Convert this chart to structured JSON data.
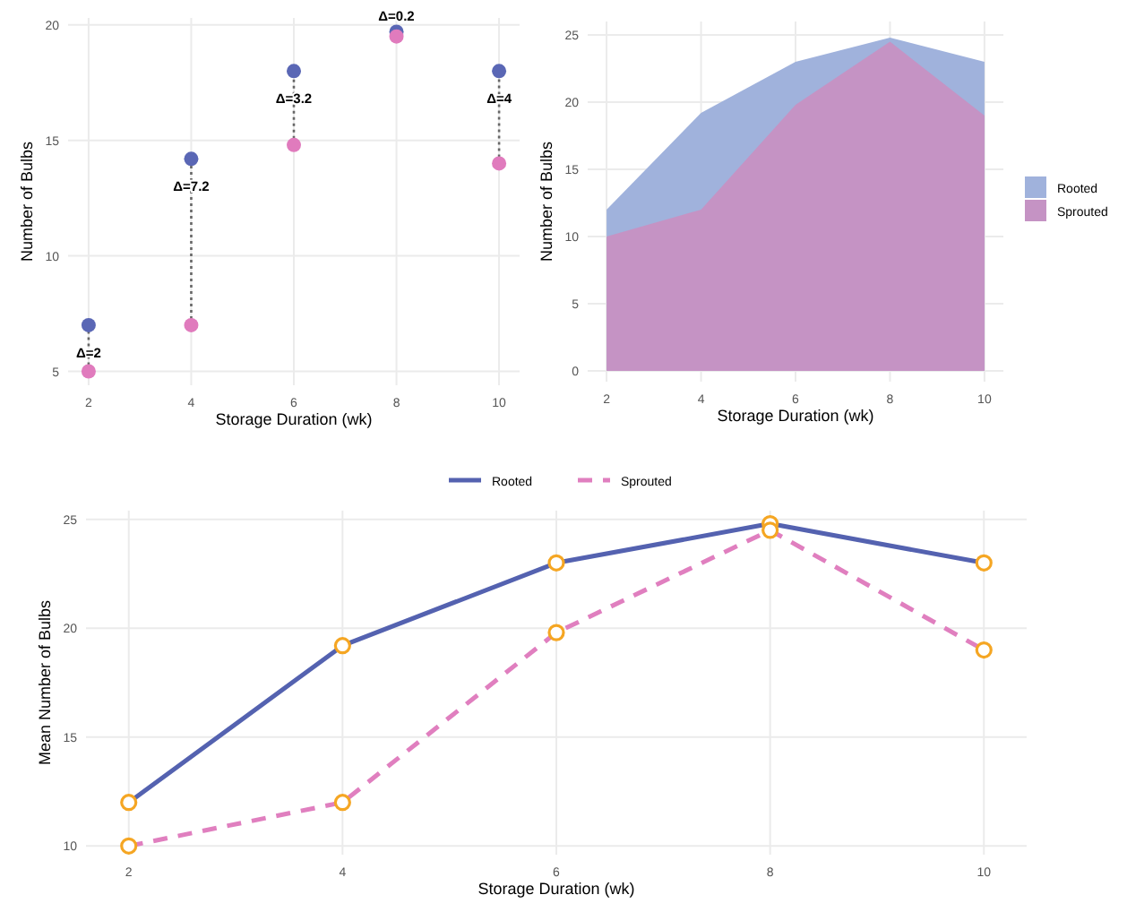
{
  "chart_data": [
    {
      "type": "scatter",
      "xlabel": "Storage Duration (wk)",
      "ylabel": "Number of Bulbs",
      "x": [
        2,
        4,
        6,
        8,
        10
      ],
      "xlim": [
        1.6,
        10.4
      ],
      "xticks": [
        2,
        4,
        6,
        8,
        10
      ],
      "ylim": [
        4.4,
        20.3
      ],
      "yticks": [
        5,
        10,
        15,
        20
      ],
      "grid": true,
      "legend": false,
      "marker": "circle",
      "series": [
        {
          "color": "#5a67b5",
          "values": [
            7,
            14.2,
            18,
            19.7,
            18
          ]
        },
        {
          "color": "#e07bbd",
          "values": [
            5,
            7,
            14.8,
            19.5,
            14
          ]
        },
        {
          "type": "line",
          "marker": "none",
          "color": "#666666",
          "line_style": "dotted",
          "x": [
            2,
            2
          ],
          "values": [
            5,
            7
          ]
        },
        {
          "type": "line",
          "marker": "none",
          "color": "#666666",
          "line_style": "dotted",
          "x": [
            4,
            4
          ],
          "values": [
            7,
            14.2
          ]
        },
        {
          "type": "line",
          "marker": "none",
          "color": "#666666",
          "line_style": "dotted",
          "x": [
            6,
            6
          ],
          "values": [
            14.8,
            18
          ]
        },
        {
          "type": "line",
          "marker": "none",
          "color": "#666666",
          "line_style": "dotted",
          "x": [
            10,
            10
          ],
          "values": [
            14,
            18
          ]
        }
      ],
      "annotations": [
        "Δ=2",
        "Δ=7.2",
        "Δ=3.2",
        "Δ=0.2",
        "Δ=4"
      ]
    },
    {
      "type": "area",
      "xlabel": "Storage Duration (wk)",
      "ylabel": "Number of Bulbs",
      "x": [
        2,
        4,
        6,
        8,
        10
      ],
      "xlim": [
        1.6,
        10.4
      ],
      "xticks": [
        2,
        4,
        6,
        8,
        10
      ],
      "ylim": [
        -0.8,
        26
      ],
      "yticks": [
        0,
        5,
        10,
        15,
        20,
        25
      ],
      "grid": true,
      "legend": "right",
      "series": [
        {
          "name": "Rooted",
          "color": "#a0b2dc",
          "values": [
            12,
            19.2,
            23,
            24.8,
            23
          ]
        },
        {
          "name": "Sprouted",
          "color": "#c593c4",
          "values": [
            10,
            12,
            19.8,
            24.5,
            19
          ]
        }
      ]
    },
    {
      "type": "line",
      "xlabel": "Storage Duration (wk)",
      "ylabel": "Mean Number of Bulbs",
      "x": [
        2,
        4,
        6,
        8,
        10
      ],
      "xlim": [
        1.6,
        10.4
      ],
      "xticks": [
        2,
        4,
        6,
        8,
        10
      ],
      "ylim": [
        9.6,
        25.4
      ],
      "yticks": [
        10,
        15,
        20,
        25
      ],
      "grid": true,
      "legend": "top",
      "marker": "circle",
      "series": [
        {
          "name": "Rooted",
          "color": "#5462b0",
          "values": [
            12,
            19.2,
            23,
            24.8,
            23
          ],
          "line_style": "solid"
        },
        {
          "name": "Sprouted",
          "color": "#e07fbf",
          "values": [
            10,
            12,
            19.8,
            24.5,
            19
          ],
          "line_style": "dashed"
        }
      ]
    }
  ]
}
